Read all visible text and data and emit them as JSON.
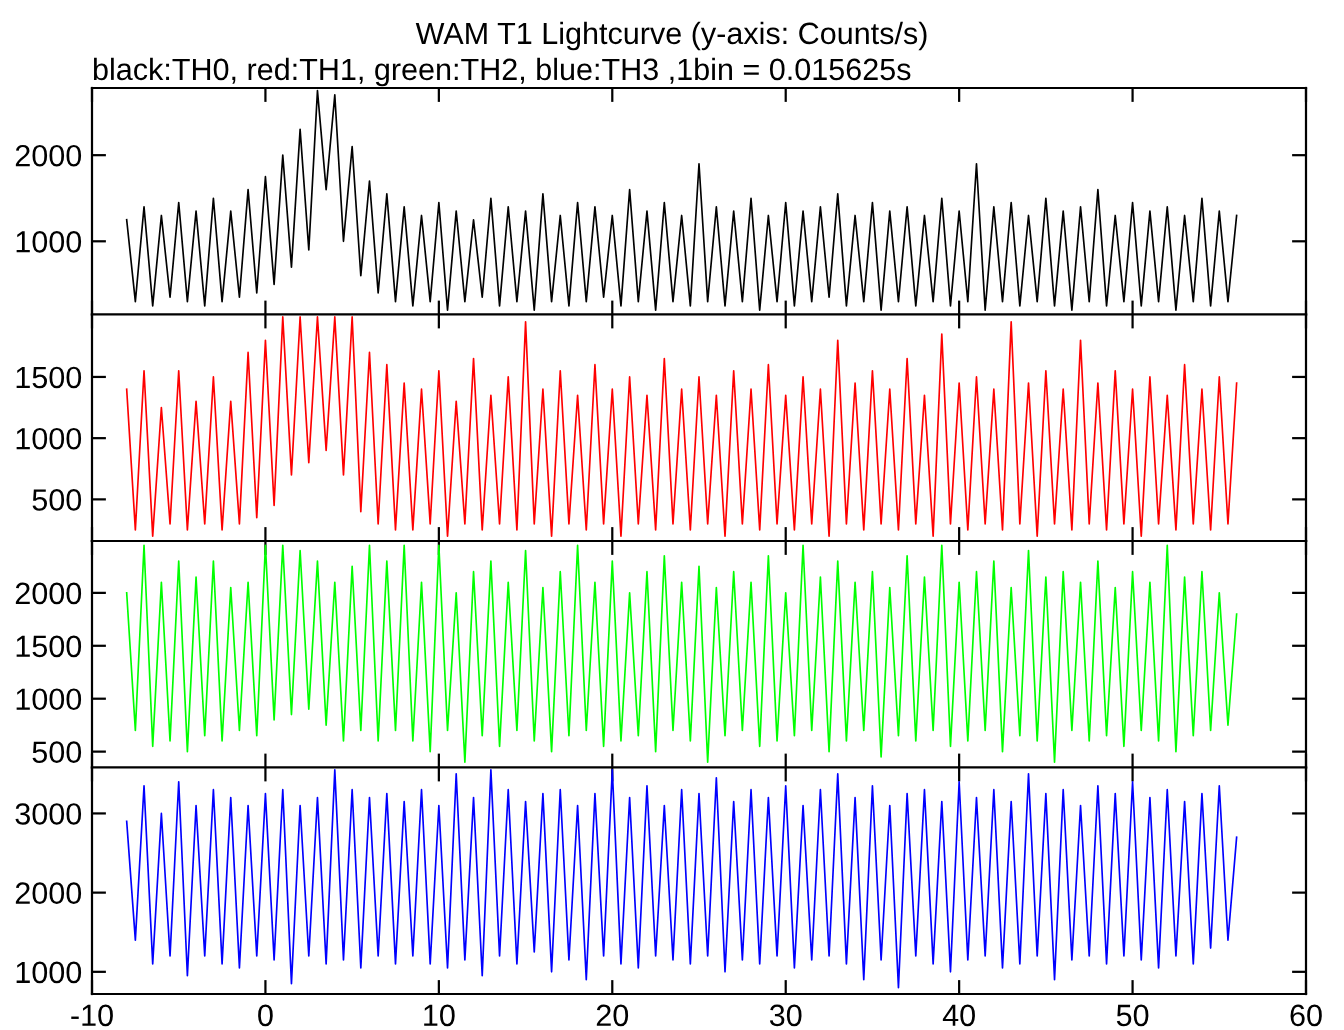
{
  "chart_data": [
    {
      "type": "line",
      "title": "WAM T1 Lightcurve (y-axis: Counts/s)",
      "subtitle": "black:TH0, red:TH1, green:TH2, blue:TH3 ,1bin = 0.015625s",
      "xlim": [
        -10,
        60
      ],
      "ylim": [
        150,
        2780
      ],
      "yticks": [
        1000,
        2000
      ],
      "tick_labels": "y",
      "x": [
        -8,
        -7.5,
        -7,
        -6.5,
        -6,
        -5.5,
        -5,
        -4.5,
        -4,
        -3.5,
        -3,
        -2.5,
        -2,
        -1.5,
        -1,
        -0.5,
        0,
        0.5,
        1,
        1.5,
        2,
        2.5,
        3,
        3.5,
        4,
        4.5,
        5,
        5.5,
        6,
        6.5,
        7,
        7.5,
        8,
        8.5,
        9,
        9.5,
        10,
        10.5,
        11,
        11.5,
        12,
        12.5,
        13,
        13.5,
        14,
        14.5,
        15,
        15.5,
        16,
        16.5,
        17,
        17.5,
        18,
        18.5,
        19,
        19.5,
        20,
        20.5,
        21,
        21.5,
        22,
        22.5,
        23,
        23.5,
        24,
        24.5,
        25,
        25.5,
        26,
        26.5,
        27,
        27.5,
        28,
        28.5,
        29,
        29.5,
        30,
        30.5,
        31,
        31.5,
        32,
        32.5,
        33,
        33.5,
        34,
        34.5,
        35,
        35.5,
        36,
        36.5,
        37,
        37.5,
        38,
        38.5,
        39,
        39.5,
        40,
        40.5,
        41,
        41.5,
        42,
        42.5,
        43,
        43.5,
        44,
        44.5,
        45,
        45.5,
        46,
        46.5,
        47,
        47.5,
        48,
        48.5,
        49,
        49.5,
        50,
        50.5,
        51,
        51.5,
        52,
        52.5,
        53,
        53.5,
        54,
        54.5,
        55,
        55.5,
        56
      ],
      "series": [
        {
          "color": "#000000",
          "values": [
            1250,
            300,
            1400,
            250,
            1300,
            350,
            1450,
            300,
            1350,
            250,
            1500,
            300,
            1350,
            350,
            1600,
            400,
            1750,
            500,
            2000,
            700,
            2300,
            900,
            2750,
            1600,
            2700,
            1000,
            2100,
            600,
            1700,
            400,
            1550,
            300,
            1400,
            250,
            1300,
            300,
            1450,
            200,
            1350,
            300,
            1250,
            350,
            1500,
            250,
            1400,
            300,
            1350,
            200,
            1550,
            300,
            1300,
            250,
            1450,
            300,
            1400,
            350,
            1300,
            250,
            1600,
            300,
            1350,
            200,
            1450,
            300,
            1300,
            250,
            1900,
            300,
            1400,
            250,
            1350,
            300,
            1500,
            200,
            1300,
            300,
            1450,
            250,
            1350,
            300,
            1400,
            350,
            1550,
            250,
            1300,
            300,
            1450,
            200,
            1350,
            300,
            1400,
            250,
            1300,
            300,
            1500,
            250,
            1350,
            300,
            1900,
            200,
            1400,
            300,
            1450,
            250,
            1300,
            300,
            1500,
            250,
            1350,
            200,
            1400,
            300,
            1600,
            250,
            1300,
            300,
            1450,
            250,
            1350,
            300,
            1400,
            200,
            1300,
            300,
            1500,
            250,
            1350,
            300,
            1300
          ]
        }
      ]
    },
    {
      "type": "line",
      "xlim": [
        -10,
        60
      ],
      "ylim": [
        160,
        2010
      ],
      "yticks": [
        500,
        1000,
        1500
      ],
      "tick_labels": "y",
      "x": [
        -8,
        -7.5,
        -7,
        -6.5,
        -6,
        -5.5,
        -5,
        -4.5,
        -4,
        -3.5,
        -3,
        -2.5,
        -2,
        -1.5,
        -1,
        -0.5,
        0,
        0.5,
        1,
        1.5,
        2,
        2.5,
        3,
        3.5,
        4,
        4.5,
        5,
        5.5,
        6,
        6.5,
        7,
        7.5,
        8,
        8.5,
        9,
        9.5,
        10,
        10.5,
        11,
        11.5,
        12,
        12.5,
        13,
        13.5,
        14,
        14.5,
        15,
        15.5,
        16,
        16.5,
        17,
        17.5,
        18,
        18.5,
        19,
        19.5,
        20,
        20.5,
        21,
        21.5,
        22,
        22.5,
        23,
        23.5,
        24,
        24.5,
        25,
        25.5,
        26,
        26.5,
        27,
        27.5,
        28,
        28.5,
        29,
        29.5,
        30,
        30.5,
        31,
        31.5,
        32,
        32.5,
        33,
        33.5,
        34,
        34.5,
        35,
        35.5,
        36,
        36.5,
        37,
        37.5,
        38,
        38.5,
        39,
        39.5,
        40,
        40.5,
        41,
        41.5,
        42,
        42.5,
        43,
        43.5,
        44,
        44.5,
        45,
        45.5,
        46,
        46.5,
        47,
        47.5,
        48,
        48.5,
        49,
        49.5,
        50,
        50.5,
        51,
        51.5,
        52,
        52.5,
        53,
        53.5,
        54,
        54.5,
        55,
        55.5,
        56
      ],
      "series": [
        {
          "color": "#ff0000",
          "values": [
            1400,
            250,
            1550,
            200,
            1250,
            300,
            1550,
            250,
            1300,
            300,
            1500,
            250,
            1300,
            300,
            1700,
            350,
            1800,
            450,
            1990,
            700,
            1990,
            800,
            1990,
            900,
            1990,
            700,
            1990,
            400,
            1700,
            300,
            1600,
            250,
            1450,
            250,
            1400,
            300,
            1550,
            200,
            1300,
            300,
            1650,
            250,
            1350,
            300,
            1500,
            250,
            1950,
            300,
            1400,
            200,
            1550,
            300,
            1350,
            250,
            1600,
            300,
            1400,
            200,
            1500,
            300,
            1350,
            250,
            1650,
            300,
            1400,
            250,
            1500,
            300,
            1350,
            200,
            1550,
            300,
            1400,
            250,
            1600,
            300,
            1350,
            250,
            1500,
            300,
            1400,
            200,
            1800,
            300,
            1450,
            250,
            1550,
            300,
            1400,
            250,
            1650,
            300,
            1350,
            200,
            1850,
            300,
            1450,
            250,
            1500,
            300,
            1400,
            250,
            1950,
            300,
            1450,
            200,
            1550,
            300,
            1400,
            250,
            1800,
            300,
            1450,
            250,
            1550,
            300,
            1400,
            200,
            1500,
            300,
            1350,
            250,
            1600,
            300,
            1400,
            250,
            1500,
            300,
            1450
          ]
        }
      ]
    },
    {
      "type": "line",
      "xlim": [
        -10,
        60
      ],
      "ylim": [
        350,
        2490
      ],
      "yticks": [
        500,
        1000,
        1500,
        2000
      ],
      "tick_labels": "y",
      "x": [
        -8,
        -7.5,
        -7,
        -6.5,
        -6,
        -5.5,
        -5,
        -4.5,
        -4,
        -3.5,
        -3,
        -2.5,
        -2,
        -1.5,
        -1,
        -0.5,
        0,
        0.5,
        1,
        1.5,
        2,
        2.5,
        3,
        3.5,
        4,
        4.5,
        5,
        5.5,
        6,
        6.5,
        7,
        7.5,
        8,
        8.5,
        9,
        9.5,
        10,
        10.5,
        11,
        11.5,
        12,
        12.5,
        13,
        13.5,
        14,
        14.5,
        15,
        15.5,
        16,
        16.5,
        17,
        17.5,
        18,
        18.5,
        19,
        19.5,
        20,
        20.5,
        21,
        21.5,
        22,
        22.5,
        23,
        23.5,
        24,
        24.5,
        25,
        25.5,
        26,
        26.5,
        27,
        27.5,
        28,
        28.5,
        29,
        29.5,
        30,
        30.5,
        31,
        31.5,
        32,
        32.5,
        33,
        33.5,
        34,
        34.5,
        35,
        35.5,
        36,
        36.5,
        37,
        37.5,
        38,
        38.5,
        39,
        39.5,
        40,
        40.5,
        41,
        41.5,
        42,
        42.5,
        43,
        43.5,
        44,
        44.5,
        45,
        45.5,
        46,
        46.5,
        47,
        47.5,
        48,
        48.5,
        49,
        49.5,
        50,
        50.5,
        51,
        51.5,
        52,
        52.5,
        53,
        53.5,
        54,
        54.5,
        55,
        55.5,
        56
      ],
      "series": [
        {
          "color": "#00ff00",
          "values": [
            2000,
            700,
            2450,
            550,
            2100,
            600,
            2300,
            500,
            2150,
            650,
            2300,
            600,
            2050,
            700,
            2100,
            650,
            2450,
            800,
            2450,
            850,
            2400,
            900,
            2300,
            750,
            2100,
            600,
            2250,
            700,
            2450,
            600,
            2300,
            700,
            2450,
            600,
            2100,
            500,
            2450,
            700,
            2000,
            400,
            2200,
            650,
            2300,
            550,
            2100,
            700,
            2400,
            600,
            2050,
            500,
            2200,
            650,
            2450,
            700,
            2100,
            550,
            2300,
            600,
            2000,
            650,
            2200,
            500,
            2350,
            700,
            2100,
            600,
            2250,
            400,
            2050,
            650,
            2200,
            700,
            2100,
            550,
            2350,
            600,
            2000,
            650,
            2450,
            700,
            2150,
            500,
            2300,
            600,
            2100,
            700,
            2200,
            450,
            2050,
            650,
            2350,
            600,
            2150,
            700,
            2450,
            550,
            2100,
            600,
            2200,
            700,
            2300,
            500,
            2050,
            650,
            2400,
            600,
            2150,
            400,
            2200,
            700,
            2100,
            600,
            2300,
            650,
            2050,
            550,
            2200,
            700,
            2100,
            600,
            2450,
            500,
            2150,
            650,
            2200,
            700,
            2000,
            750,
            1800
          ]
        }
      ]
    },
    {
      "type": "line",
      "xlim": [
        -10,
        60
      ],
      "xticks": [
        -10,
        0,
        10,
        20,
        30,
        40,
        50,
        60
      ],
      "ylim": [
        720,
        3580
      ],
      "yticks": [
        1000,
        2000,
        3000
      ],
      "x": [
        -8,
        -7.5,
        -7,
        -6.5,
        -6,
        -5.5,
        -5,
        -4.5,
        -4,
        -3.5,
        -3,
        -2.5,
        -2,
        -1.5,
        -1,
        -0.5,
        0,
        0.5,
        1,
        1.5,
        2,
        2.5,
        3,
        3.5,
        4,
        4.5,
        5,
        5.5,
        6,
        6.5,
        7,
        7.5,
        8,
        8.5,
        9,
        9.5,
        10,
        10.5,
        11,
        11.5,
        12,
        12.5,
        13,
        13.5,
        14,
        14.5,
        15,
        15.5,
        16,
        16.5,
        17,
        17.5,
        18,
        18.5,
        19,
        19.5,
        20,
        20.5,
        21,
        21.5,
        22,
        22.5,
        23,
        23.5,
        24,
        24.5,
        25,
        25.5,
        26,
        26.5,
        27,
        27.5,
        28,
        28.5,
        29,
        29.5,
        30,
        30.5,
        31,
        31.5,
        32,
        32.5,
        33,
        33.5,
        34,
        34.5,
        35,
        35.5,
        36,
        36.5,
        37,
        37.5,
        38,
        38.5,
        39,
        39.5,
        40,
        40.5,
        41,
        41.5,
        42,
        42.5,
        43,
        43.5,
        44,
        44.5,
        45,
        45.5,
        46,
        46.5,
        47,
        47.5,
        48,
        48.5,
        49,
        49.5,
        50,
        50.5,
        51,
        51.5,
        52,
        52.5,
        53,
        53.5,
        54,
        54.5,
        55,
        55.5,
        56
      ],
      "series": [
        {
          "color": "#0000ff",
          "values": [
            2900,
            1400,
            3350,
            1100,
            3000,
            1200,
            3400,
            950,
            3100,
            1200,
            3300,
            1100,
            3200,
            1050,
            3100,
            1200,
            3250,
            1150,
            3300,
            850,
            3100,
            1200,
            3200,
            1100,
            3550,
            1150,
            3300,
            1050,
            3200,
            1200,
            3250,
            1100,
            3150,
            1200,
            3300,
            1100,
            3100,
            1050,
            3500,
            1150,
            3200,
            950,
            3550,
            1200,
            3300,
            1100,
            3150,
            1250,
            3250,
            1000,
            3300,
            1150,
            3100,
            900,
            3250,
            1200,
            3550,
            1100,
            3200,
            1050,
            3350,
            1200,
            3100,
            1150,
            3300,
            1100,
            3250,
            1200,
            3450,
            1000,
            3150,
            1150,
            3300,
            1100,
            3200,
            1200,
            3350,
            1050,
            3100,
            1150,
            3300,
            1200,
            3500,
            1100,
            3200,
            900,
            3350,
            1150,
            3100,
            800,
            3250,
            1200,
            3300,
            1100,
            3150,
            1000,
            3400,
            1150,
            3200,
            1200,
            3300,
            1050,
            3150,
            1100,
            3500,
            1200,
            3250,
            900,
            3300,
            1150,
            3100,
            1200,
            3350,
            1100,
            3250,
            1200,
            3400,
            1150,
            3200,
            1050,
            3300,
            1200,
            3150,
            1100,
            3250,
            1300,
            3350,
            1400,
            2700
          ]
        }
      ]
    }
  ]
}
